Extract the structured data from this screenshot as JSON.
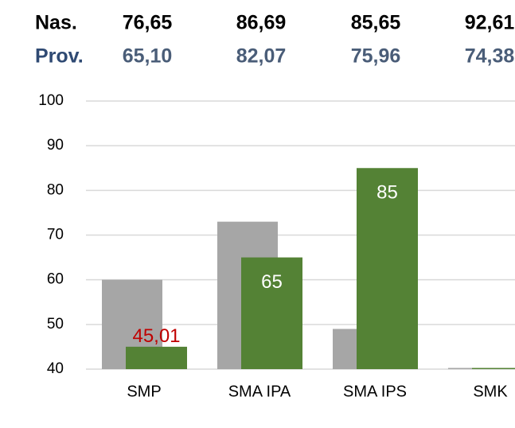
{
  "table": {
    "rows": [
      [
        "Nas.",
        "76,65",
        "86,69",
        "85,65",
        "92,61"
      ],
      [
        "Prov.",
        "65,10",
        "82,07",
        "75,96",
        "74,38"
      ]
    ],
    "row_colors": [
      "#000000",
      "#2f4a73"
    ],
    "value_colors": [
      "#000000",
      "#4a5d78"
    ]
  },
  "chart_data": {
    "type": "bar",
    "categories": [
      "SMP",
      "SMA IPA",
      "SMA IPS",
      "SMK"
    ],
    "series": [
      {
        "color": "#a6a6a6",
        "values": [
          60,
          73,
          49,
          40
        ]
      },
      {
        "color": "#548235",
        "values": [
          45.01,
          65,
          85,
          40
        ],
        "value_labels": [
          "45,01",
          "65",
          "85",
          null
        ],
        "value_label_colors": [
          "#c00000",
          "#ffffff",
          "#ffffff",
          null
        ]
      }
    ],
    "ylim": [
      40,
      100
    ],
    "yticks": [
      40,
      50,
      60,
      70,
      80,
      90,
      100
    ],
    "grid": true
  }
}
